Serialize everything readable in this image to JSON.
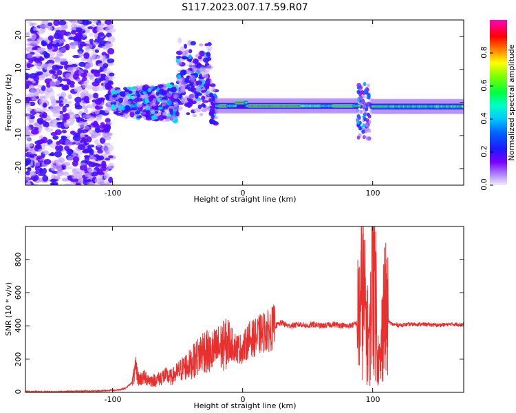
{
  "title": "S117.2023.007.17.59.R07",
  "colors": {
    "snr_line": "#e8302e",
    "frame": "#000000",
    "background": "#ffffff"
  },
  "chart_data": [
    {
      "type": "heatmap",
      "xlabel": "Height of straight line (km)",
      "ylabel": "Frequency (Hz)",
      "xlim": [
        -167,
        170
      ],
      "ylim": [
        -25,
        25
      ],
      "xticks": [
        -100,
        0,
        100
      ],
      "xtick_labels": [
        "-100",
        "0",
        "100"
      ],
      "yticks": [
        -20,
        -10,
        0,
        10,
        20
      ],
      "ytick_labels": [
        "-20",
        "-10",
        "0",
        "10",
        "20"
      ],
      "colorbar": {
        "label": "Normalized spectral amplitude",
        "range": [
          0,
          1
        ],
        "ticks": [
          0.0,
          0.2,
          0.4,
          0.6,
          0.8
        ],
        "tick_labels": [
          "0.0",
          "0.2",
          "0.4",
          "0.6",
          "0.8"
        ],
        "colormap": "rainbow (purple-blue-cyan-green-yellow-red-magenta)"
      },
      "regions": [
        {
          "x": [
            -167,
            -100
          ],
          "frequency_spread": [
            -25,
            25
          ],
          "amplitude": "noise (~0.0-0.1)"
        },
        {
          "x": [
            -100,
            -20
          ],
          "frequency_spread": [
            -10,
            16
          ],
          "amplitude": "scattered (~0.1-0.4)"
        },
        {
          "x": [
            -20,
            90
          ],
          "frequency": [
            -2,
            0
          ],
          "amplitude": "strong band (~0.4-1.0)"
        },
        {
          "x": [
            88,
            98
          ],
          "frequency_spread": [
            -11,
            6
          ],
          "amplitude": "disturbance (~0.1-0.4)"
        },
        {
          "x": [
            100,
            170
          ],
          "frequency": [
            -2,
            0
          ],
          "amplitude": "band (~0.4-0.7)"
        }
      ]
    },
    {
      "type": "line",
      "xlabel": "Height of straight line (km)",
      "ylabel": "SNR (10 * v/v)",
      "xlim": [
        -167,
        170
      ],
      "ylim": [
        0,
        1000
      ],
      "xticks": [
        -100,
        0,
        100
      ],
      "xtick_labels": [
        "-100",
        "0",
        "100"
      ],
      "yticks": [
        0,
        200,
        400,
        600,
        800
      ],
      "ytick_labels": [
        "0",
        "200",
        "400",
        "600",
        "800"
      ],
      "series": [
        {
          "x": [
            -167,
            -150,
            -130,
            -110,
            -95,
            -90,
            -85,
            -82,
            -80,
            -75,
            -70,
            -65,
            -60,
            -55,
            -50,
            -45,
            -40,
            -35,
            -30,
            -25,
            -20,
            -15,
            -10,
            -5,
            0,
            5,
            10,
            15,
            20,
            25,
            30,
            35,
            40,
            45,
            50,
            55,
            60,
            65,
            70,
            75,
            80,
            85,
            88,
            90,
            92,
            94,
            96,
            98,
            100,
            102,
            104,
            106,
            108,
            110,
            112,
            115,
            120,
            130,
            140,
            150,
            160,
            170
          ],
          "values": [
            5,
            4,
            6,
            8,
            15,
            25,
            60,
            140,
            80,
            90,
            70,
            80,
            100,
            90,
            120,
            150,
            170,
            210,
            260,
            230,
            260,
            280,
            300,
            270,
            260,
            320,
            330,
            360,
            370,
            400,
            420,
            400,
            405,
            410,
            400,
            410,
            400,
            405,
            410,
            405,
            400,
            405,
            420,
            470,
            640,
            500,
            350,
            300,
            950,
            680,
            220,
            150,
            500,
            480,
            430,
            410,
            405,
            410,
            410,
            405,
            410,
            410
          ]
        }
      ]
    }
  ]
}
